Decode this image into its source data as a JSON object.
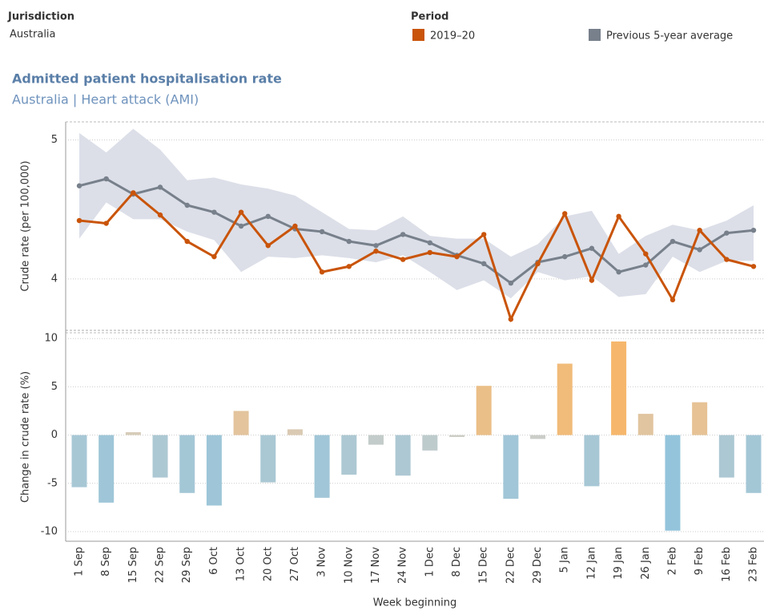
{
  "header": {
    "jurisdiction_label": "Jurisdiction",
    "jurisdiction": "Australia",
    "period_label": "Period"
  },
  "chart_data": [
    {
      "type": "line",
      "title": "Admitted patient hospitalisation rate",
      "subtitle": "Australia | Heart attack (AMI)",
      "y_label": "Crude rate (per 100,000)",
      "ylim": [
        3.63,
        5.13
      ],
      "yticks": [
        4,
        5
      ],
      "grid": true,
      "series": [
        {
          "name": "2019–20",
          "color": "#c9540a",
          "values": [
            4.42,
            4.4,
            4.62,
            4.46,
            4.27,
            4.16,
            4.48,
            4.24,
            4.38,
            4.05,
            4.09,
            4.2,
            4.14,
            4.19,
            4.16,
            4.32,
            3.71,
            4.11,
            4.47,
            3.99,
            4.45,
            4.18,
            3.85,
            4.35,
            4.14,
            4.09
          ]
        },
        {
          "name": "Previous 5-year average",
          "color": "#77808b",
          "values": [
            4.67,
            4.72,
            4.61,
            4.66,
            4.53,
            4.48,
            4.38,
            4.45,
            4.36,
            4.34,
            4.27,
            4.24,
            4.32,
            4.26,
            4.17,
            4.11,
            3.97,
            4.12,
            4.16,
            4.22,
            4.05,
            4.1,
            4.27,
            4.21,
            4.33,
            4.35
          ]
        }
      ],
      "band": {
        "color": "#dcdfe8",
        "upper": [
          5.05,
          4.91,
          5.08,
          4.93,
          4.71,
          4.73,
          4.68,
          4.65,
          4.6,
          4.48,
          4.36,
          4.35,
          4.45,
          4.31,
          4.29,
          4.29,
          4.16,
          4.25,
          4.45,
          4.49,
          4.18,
          4.31,
          4.39,
          4.35,
          4.42,
          4.53
        ],
        "lower": [
          4.29,
          4.55,
          4.43,
          4.43,
          4.34,
          4.28,
          4.05,
          4.16,
          4.15,
          4.17,
          4.15,
          4.12,
          4.17,
          4.05,
          3.92,
          3.99,
          3.86,
          4.05,
          3.99,
          4.02,
          3.87,
          3.89,
          4.16,
          4.05,
          4.13,
          4.13
        ]
      }
    },
    {
      "type": "bar",
      "y_label": "Change in crude rate (%)",
      "x_label": "Week beginning",
      "ylim": [
        -11,
        10.6
      ],
      "yticks": [
        -10,
        -5,
        0,
        5,
        10
      ],
      "grid": true,
      "color_negative": "#8fc3de",
      "color_positive": "#f9b565",
      "color_neutral": "#d3cfc4",
      "categories": [
        "1 Sep",
        "8 Sep",
        "15 Sep",
        "22 Sep",
        "29 Sep",
        "6 Oct",
        "13 Oct",
        "20 Oct",
        "27 Oct",
        "3 Nov",
        "10 Nov",
        "17 Nov",
        "24 Nov",
        "1 Dec",
        "8 Dec",
        "15 Dec",
        "22 Dec",
        "29 Dec",
        "5 Jan",
        "12 Jan",
        "19 Jan",
        "26 Jan",
        "2 Feb",
        "9 Feb",
        "16 Feb",
        "23 Feb"
      ],
      "values": [
        -5.4,
        -7.0,
        0.3,
        -4.4,
        -6.0,
        -7.3,
        2.5,
        -4.9,
        0.6,
        -6.5,
        -4.1,
        -1.0,
        -4.2,
        -1.6,
        -0.2,
        5.1,
        -6.6,
        -0.4,
        7.4,
        -5.3,
        9.7,
        2.2,
        -9.9,
        3.4,
        -4.4,
        -6.0
      ]
    }
  ]
}
